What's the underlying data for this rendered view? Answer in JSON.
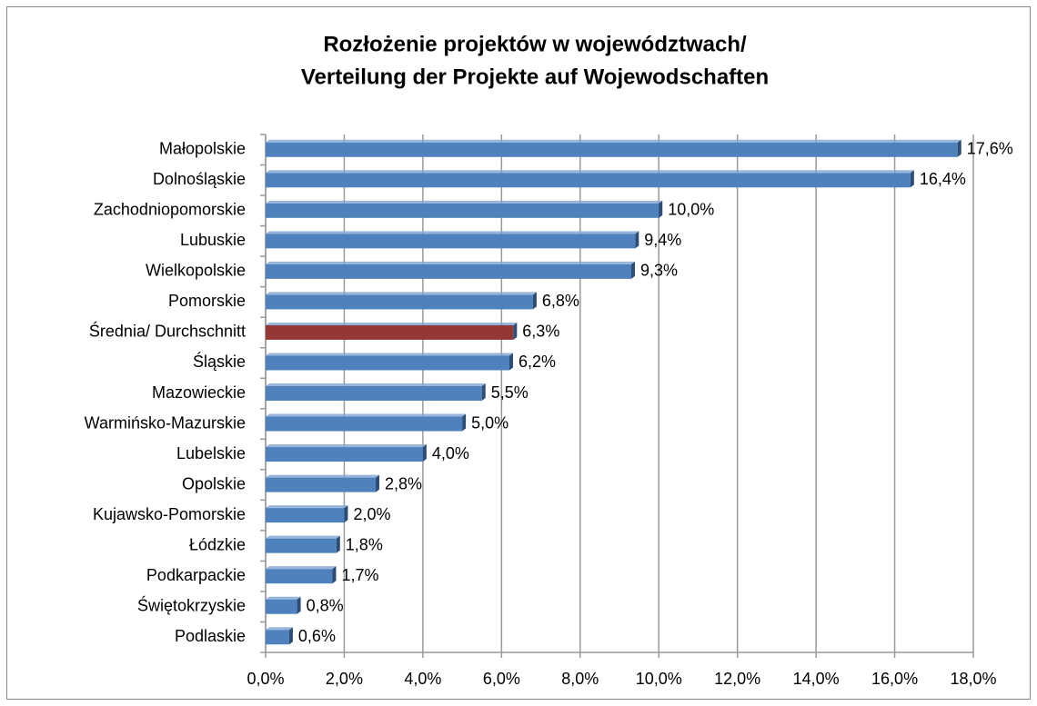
{
  "chart_data": {
    "type": "bar",
    "orientation": "horizontal",
    "title": [
      "Rozłożenie projektów w województwach/",
      "Verteilung der Projekte auf Wojewodschaften"
    ],
    "categories": [
      "Małopolskie",
      "Dolnośląskie",
      "Zachodniopomorskie",
      "Lubuskie",
      "Wielkopolskie",
      "Pomorskie",
      "Średnia/ Durchschnitt",
      "Śląskie",
      "Mazowieckie",
      "Warmińsko-Mazurskie",
      "Lubelskie",
      "Opolskie",
      "Kujawsko-Pomorskie",
      "Łódzkie",
      "Podkarpackie",
      "Świętokrzyskie",
      "Podlaskie"
    ],
    "values": [
      17.6,
      16.4,
      10.0,
      9.4,
      9.3,
      6.8,
      6.3,
      6.2,
      5.5,
      5.0,
      4.0,
      2.8,
      2.0,
      1.8,
      1.7,
      0.8,
      0.6
    ],
    "value_labels": [
      "17,6%",
      "16,4%",
      "10,0%",
      "9,4%",
      "9,3%",
      "6,8%",
      "6,3%",
      "6,2%",
      "5,5%",
      "5,0%",
      "4,0%",
      "2,8%",
      "2,0%",
      "1,8%",
      "1,7%",
      "0,8%",
      "0,6%"
    ],
    "colors": [
      "#4f81bd",
      "#4f81bd",
      "#4f81bd",
      "#4f81bd",
      "#4f81bd",
      "#4f81bd",
      "#953735",
      "#4f81bd",
      "#4f81bd",
      "#4f81bd",
      "#4f81bd",
      "#4f81bd",
      "#4f81bd",
      "#4f81bd",
      "#4f81bd",
      "#4f81bd",
      "#4f81bd"
    ],
    "xlim": [
      0,
      18
    ],
    "xticks": [
      {
        "value": 0,
        "label": "0,0%"
      },
      {
        "value": 2,
        "label": "2,0%"
      },
      {
        "value": 4,
        "label": "4,0%"
      },
      {
        "value": 6,
        "label": "6,0%"
      },
      {
        "value": 8,
        "label": "8,0%"
      },
      {
        "value": 10,
        "label": "10,0%"
      },
      {
        "value": 12,
        "label": "12,0%"
      },
      {
        "value": 14,
        "label": "14,0%"
      },
      {
        "value": 16,
        "label": "16,0%"
      },
      {
        "value": 18,
        "label": "18,0%"
      }
    ],
    "grid": true
  }
}
